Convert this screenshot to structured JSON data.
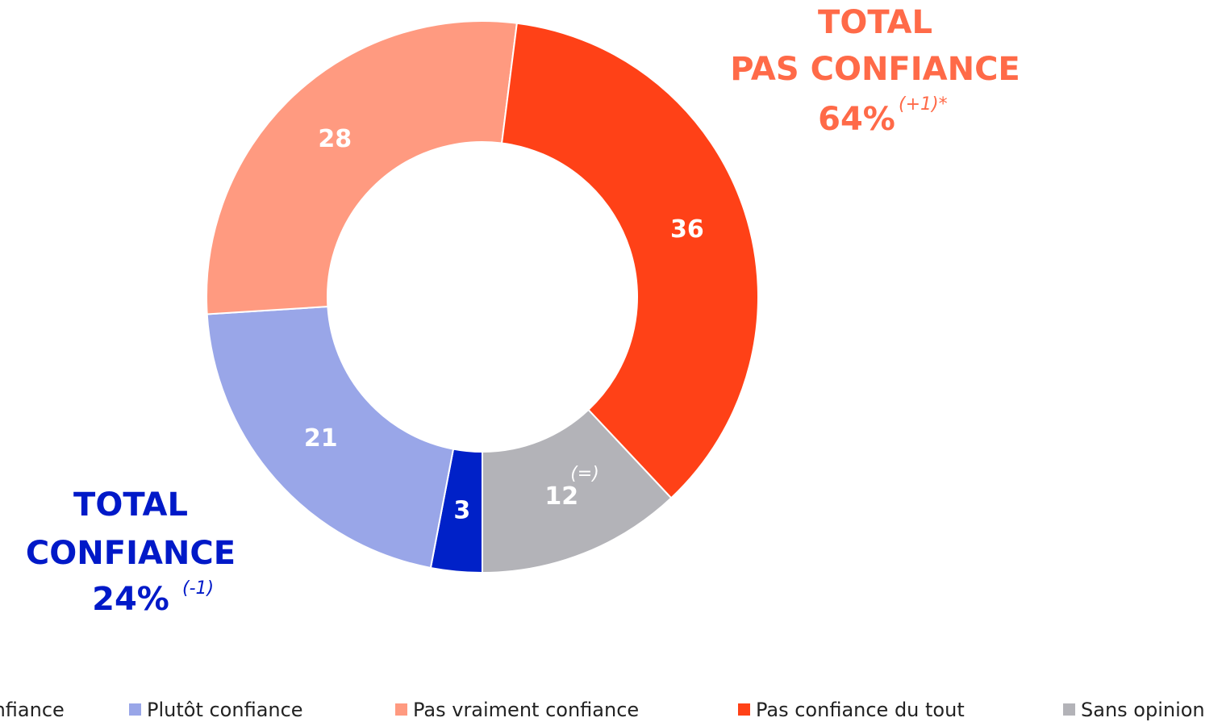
{
  "chart_data": {
    "type": "donut",
    "series": [
      {
        "name": "Tout à fait confiance",
        "color": "#0021c8",
        "value": 3
      },
      {
        "name": "Plutôt confiance",
        "color": "#99a6e8",
        "value": 21
      },
      {
        "name": "Pas vraiment confiance",
        "color": "#ff9a80",
        "value": 28
      },
      {
        "name": "Pas confiance du tout",
        "color": "#ff4117",
        "value": 36
      },
      {
        "name": "Sans opinion",
        "color": "#b3b3b8",
        "value": 12
      }
    ],
    "annotations": [
      {
        "text": "TOTAL",
        "color": "#ff6a48"
      },
      {
        "text": "PAS CONFIANCE",
        "color": "#ff6a48"
      },
      {
        "text": "64%",
        "color": "#ff6a48"
      },
      {
        "text": "(+1)*",
        "color": "#ff6a48"
      },
      {
        "text": "TOTAL",
        "color": "#0019c8"
      },
      {
        "text": "CONFIANCE",
        "color": "#0019c8"
      },
      {
        "text": "24%",
        "color": "#0019c8"
      },
      {
        "text": "(-1)",
        "color": "#0019c8"
      },
      {
        "text": "(=)",
        "color": "#ffffff"
      }
    ]
  }
}
